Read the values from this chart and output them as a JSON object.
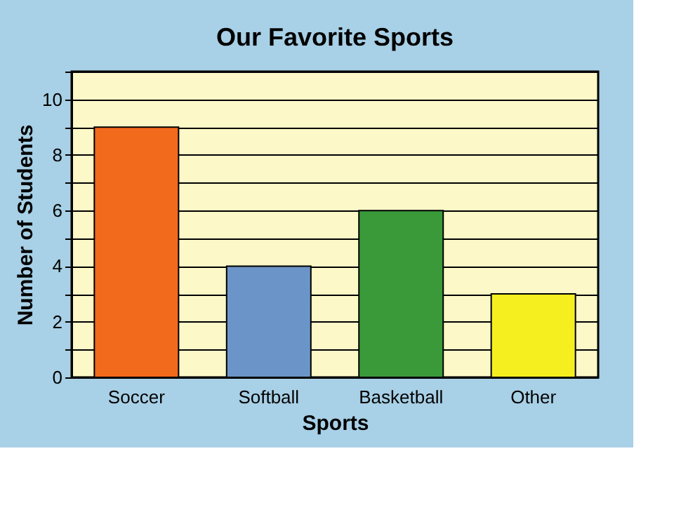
{
  "chart_data": {
    "type": "bar",
    "title": "Our Favorite Sports",
    "xlabel": "Sports",
    "ylabel": "Number of Students",
    "categories": [
      "Soccer",
      "Softball",
      "Basketball",
      "Other"
    ],
    "values": [
      9,
      4,
      6,
      3
    ],
    "colors": [
      "#f26a1b",
      "#6b95c8",
      "#3a9a3a",
      "#f5ef1f"
    ],
    "ylim": [
      0,
      11
    ],
    "yticks": [
      0,
      {
        "value": 1,
        "label": null
      },
      2,
      {
        "value": 3,
        "label": null
      },
      4,
      {
        "value": 5,
        "label": null
      },
      6,
      {
        "value": 7,
        "label": null
      },
      8,
      {
        "value": 9,
        "label": null
      },
      10,
      {
        "value": 11,
        "label": null
      }
    ],
    "grid": "y",
    "legend": false
  }
}
